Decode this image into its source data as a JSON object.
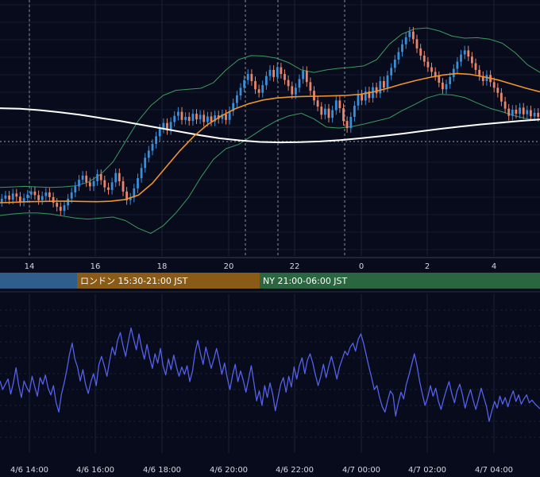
{
  "chart_data": [
    {
      "type": "candlestick",
      "panel": "price",
      "title": "",
      "x_ticks": [
        "14",
        "16",
        "18",
        "20",
        "22",
        "0",
        "2",
        "4"
      ],
      "grid": true,
      "colors": {
        "up": "#3a8fd8",
        "down": "#e8856a",
        "ma_long": "#ffffff",
        "ma_mid": "#f0942a",
        "band": "#3d9a5e"
      },
      "candles": [
        {
          "o": 1.1,
          "c": 1.8
        },
        {
          "o": 1.8,
          "c": 2.4
        },
        {
          "o": 2.4,
          "c": 1.6
        },
        {
          "o": 1.6,
          "c": 2.8
        },
        {
          "o": 2.8,
          "c": 2.2
        },
        {
          "o": 2.2,
          "c": 1.2
        },
        {
          "o": 1.2,
          "c": 1.9
        },
        {
          "o": 1.9,
          "c": 2.6
        },
        {
          "o": 2.6,
          "c": 3.2
        },
        {
          "o": 3.2,
          "c": 2.5
        },
        {
          "o": 2.5,
          "c": 1.5
        },
        {
          "o": 1.5,
          "c": 2.3
        },
        {
          "o": 2.3,
          "c": 3.0
        },
        {
          "o": 3.0,
          "c": 2.1
        },
        {
          "o": 2.1,
          "c": 1.0
        },
        {
          "o": 1.0,
          "c": 0.2
        },
        {
          "o": 0.2,
          "c": -0.6
        },
        {
          "o": -0.6,
          "c": 0.5
        },
        {
          "o": 0.5,
          "c": 1.8
        },
        {
          "o": 1.8,
          "c": 3.0
        },
        {
          "o": 3.0,
          "c": 4.2
        },
        {
          "o": 4.2,
          "c": 5.5
        },
        {
          "o": 5.5,
          "c": 6.3
        },
        {
          "o": 6.3,
          "c": 5.0
        },
        {
          "o": 5.0,
          "c": 4.2
        },
        {
          "o": 4.2,
          "c": 5.2
        },
        {
          "o": 5.2,
          "c": 6.6
        },
        {
          "o": 6.6,
          "c": 5.4
        },
        {
          "o": 5.4,
          "c": 4.0
        },
        {
          "o": 4.0,
          "c": 3.5
        },
        {
          "o": 3.5,
          "c": 5.0
        },
        {
          "o": 5.0,
          "c": 6.8
        },
        {
          "o": 6.8,
          "c": 5.2
        },
        {
          "o": 5.2,
          "c": 3.2
        },
        {
          "o": 3.2,
          "c": 1.5
        },
        {
          "o": 1.5,
          "c": 2.0
        },
        {
          "o": 2.0,
          "c": 3.8
        },
        {
          "o": 3.8,
          "c": 5.8
        },
        {
          "o": 5.8,
          "c": 7.8
        },
        {
          "o": 7.8,
          "c": 9.8
        },
        {
          "o": 9.8,
          "c": 11.2
        },
        {
          "o": 11.2,
          "c": 12.5
        },
        {
          "o": 12.5,
          "c": 14.0
        },
        {
          "o": 14.0,
          "c": 15.5
        },
        {
          "o": 15.5,
          "c": 16.6
        },
        {
          "o": 16.6,
          "c": 15.2
        },
        {
          "o": 15.2,
          "c": 16.8
        },
        {
          "o": 16.8,
          "c": 18.0
        },
        {
          "o": 18.0,
          "c": 18.8
        },
        {
          "o": 18.8,
          "c": 17.2
        },
        {
          "o": 17.2,
          "c": 17.8
        },
        {
          "o": 17.8,
          "c": 17.0
        },
        {
          "o": 17.0,
          "c": 18.4
        },
        {
          "o": 18.4,
          "c": 17.3
        },
        {
          "o": 17.3,
          "c": 18.2
        },
        {
          "o": 18.2,
          "c": 16.8
        },
        {
          "o": 16.8,
          "c": 17.9
        },
        {
          "o": 17.9,
          "c": 16.9
        },
        {
          "o": 16.9,
          "c": 18.1
        },
        {
          "o": 18.1,
          "c": 17.4
        },
        {
          "o": 17.4,
          "c": 18.3
        },
        {
          "o": 18.3,
          "c": 17.2
        },
        {
          "o": 17.2,
          "c": 18.9
        },
        {
          "o": 18.9,
          "c": 20.5
        },
        {
          "o": 20.5,
          "c": 22.0
        },
        {
          "o": 22.0,
          "c": 23.5
        },
        {
          "o": 23.5,
          "c": 25.0
        },
        {
          "o": 25.0,
          "c": 26.2
        },
        {
          "o": 26.2,
          "c": 24.8
        },
        {
          "o": 24.8,
          "c": 23.2
        },
        {
          "o": 23.2,
          "c": 22.5
        },
        {
          "o": 22.5,
          "c": 24.0
        },
        {
          "o": 24.0,
          "c": 25.8
        },
        {
          "o": 25.8,
          "c": 27.0
        },
        {
          "o": 27.0,
          "c": 25.6
        },
        {
          "o": 25.6,
          "c": 27.5
        },
        {
          "o": 27.5,
          "c": 26.2
        },
        {
          "o": 26.2,
          "c": 25.0
        },
        {
          "o": 25.0,
          "c": 23.8
        },
        {
          "o": 23.8,
          "c": 22.2
        },
        {
          "o": 22.2,
          "c": 23.5
        },
        {
          "o": 23.5,
          "c": 25.2
        },
        {
          "o": 25.2,
          "c": 26.8
        },
        {
          "o": 26.8,
          "c": 24.6
        },
        {
          "o": 24.6,
          "c": 22.9
        },
        {
          "o": 22.9,
          "c": 21.0
        },
        {
          "o": 21.0,
          "c": 19.8
        },
        {
          "o": 19.8,
          "c": 18.2
        },
        {
          "o": 18.2,
          "c": 19.4
        },
        {
          "o": 19.4,
          "c": 17.6
        },
        {
          "o": 17.6,
          "c": 19.1
        },
        {
          "o": 19.1,
          "c": 21.0
        },
        {
          "o": 21.0,
          "c": 19.5
        },
        {
          "o": 19.5,
          "c": 17.0
        },
        {
          "o": 17.0,
          "c": 15.6
        },
        {
          "o": 15.6,
          "c": 17.8
        },
        {
          "o": 17.8,
          "c": 20.0
        },
        {
          "o": 20.0,
          "c": 22.2
        },
        {
          "o": 22.2,
          "c": 21.0
        },
        {
          "o": 21.0,
          "c": 22.8
        },
        {
          "o": 22.8,
          "c": 21.5
        },
        {
          "o": 21.5,
          "c": 23.6
        },
        {
          "o": 23.6,
          "c": 22.4
        },
        {
          "o": 22.4,
          "c": 24.8
        },
        {
          "o": 24.8,
          "c": 23.5
        },
        {
          "o": 23.5,
          "c": 25.9
        },
        {
          "o": 25.9,
          "c": 27.4
        },
        {
          "o": 27.4,
          "c": 29.0
        },
        {
          "o": 29.0,
          "c": 30.5
        },
        {
          "o": 30.5,
          "c": 32.0
        },
        {
          "o": 32.0,
          "c": 33.4
        },
        {
          "o": 33.4,
          "c": 34.5
        },
        {
          "o": 34.5,
          "c": 33.0
        },
        {
          "o": 33.0,
          "c": 31.2
        },
        {
          "o": 31.2,
          "c": 29.8
        },
        {
          "o": 29.8,
          "c": 28.6
        },
        {
          "o": 28.6,
          "c": 27.5
        },
        {
          "o": 27.5,
          "c": 26.6
        },
        {
          "o": 26.6,
          "c": 25.8
        },
        {
          "o": 25.8,
          "c": 24.5
        },
        {
          "o": 24.5,
          "c": 23.2
        },
        {
          "o": 23.2,
          "c": 24.2
        },
        {
          "o": 24.2,
          "c": 25.6
        },
        {
          "o": 25.6,
          "c": 27.2
        },
        {
          "o": 27.2,
          "c": 28.6
        },
        {
          "o": 28.6,
          "c": 30.0
        },
        {
          "o": 30.0,
          "c": 30.8
        },
        {
          "o": 30.8,
          "c": 29.6
        },
        {
          "o": 29.6,
          "c": 28.3
        },
        {
          "o": 28.3,
          "c": 27.0
        },
        {
          "o": 27.0,
          "c": 25.8
        },
        {
          "o": 25.8,
          "c": 24.8
        },
        {
          "o": 24.8,
          "c": 26.0
        },
        {
          "o": 26.0,
          "c": 24.6
        },
        {
          "o": 24.6,
          "c": 23.5
        },
        {
          "o": 23.5,
          "c": 22.5
        },
        {
          "o": 22.5,
          "c": 20.8
        },
        {
          "o": 20.8,
          "c": 19.4
        },
        {
          "o": 19.4,
          "c": 18.0
        },
        {
          "o": 18.0,
          "c": 19.2
        },
        {
          "o": 19.2,
          "c": 18.4
        },
        {
          "o": 18.4,
          "c": 19.6
        },
        {
          "o": 19.6,
          "c": 18.3
        },
        {
          "o": 18.3,
          "c": 19.1
        },
        {
          "o": 19.1,
          "c": 17.9
        },
        {
          "o": 17.9,
          "c": 18.6
        },
        {
          "o": 18.6,
          "c": 17.8
        }
      ],
      "ma_long": [
        19.5,
        19.4,
        19.1,
        18.7,
        18.2,
        17.6,
        17.0,
        16.3,
        15.6,
        14.9,
        14.2,
        13.6,
        13.2,
        12.9,
        12.8,
        12.85,
        13.0,
        13.25,
        13.6,
        14.0,
        14.45,
        14.95,
        15.45,
        15.9,
        16.3,
        16.65,
        17.0,
        17.3
      ],
      "ma_mid": [
        1.0,
        1.1,
        1.2,
        1.25,
        1.3,
        1.3,
        1.25,
        1.2,
        1.3,
        1.6,
        2.5,
        4.8,
        8.0,
        11.2,
        14.0,
        16.3,
        18.0,
        19.4,
        20.4,
        21.1,
        21.5,
        21.7,
        21.8,
        21.85,
        21.9,
        22.0,
        22.2,
        22.7,
        23.4,
        24.2,
        24.9,
        25.5,
        26.0,
        26.3,
        26.1,
        25.6,
        25.0,
        24.2,
        23.4,
        22.7
      ],
      "band_upper": [
        4.0,
        4.1,
        4.2,
        4.1,
        4.0,
        4.1,
        4.3,
        5.0,
        6.5,
        9.0,
        13.0,
        17.0,
        20.0,
        22.0,
        23.0,
        23.2,
        23.4,
        24.5,
        27.0,
        29.0,
        29.8,
        29.7,
        29.3,
        28.4,
        27.0,
        26.5,
        27.0,
        27.3,
        27.5,
        27.8,
        29.0,
        32.0,
        34.0,
        35.0,
        35.2,
        34.6,
        33.6,
        33.2,
        33.3,
        33.0,
        32.2,
        30.4,
        28.0,
        26.5
      ],
      "band_lower": [
        -1.5,
        -1.2,
        -1.0,
        -1.0,
        -1.2,
        -1.6,
        -2.0,
        -2.2,
        -2.0,
        -1.8,
        -2.5,
        -4.0,
        -5.0,
        -3.5,
        -1.0,
        2.0,
        6.0,
        9.5,
        11.6,
        12.4,
        14.0,
        15.6,
        17.0,
        18.0,
        18.5,
        17.4,
        15.8,
        15.6,
        15.9,
        16.4,
        17.0,
        17.6,
        19.0,
        20.2,
        21.5,
        22.2,
        22.1,
        21.6,
        20.5,
        19.5,
        18.8,
        18.0,
        17.4,
        17.3
      ]
    },
    {
      "type": "bar",
      "panel": "sessions",
      "categories": [
        "",
        "ロンドン 15:30-21:00 JST",
        "NY 21:00-06:00 JST"
      ],
      "colors": [
        "#2f5e8c",
        "#8a5a17",
        "#2a6640"
      ]
    },
    {
      "type": "line",
      "panel": "oscillator",
      "x_ticks": [
        "4/6 14:00",
        "4/6 16:00",
        "4/6 18:00",
        "4/6 20:00",
        "4/6 22:00",
        "4/7 00:00",
        "4/7 02:00",
        "4/7 04:00"
      ],
      "color": "#5561e8",
      "series": [
        {
          "values": [
            -1.5,
            -2.8,
            -2.0,
            -1.2,
            -3.5,
            -1.8,
            0.5,
            -2.2,
            -4.0,
            -1.5,
            -2.5,
            -3.2,
            -0.8,
            -2.4,
            -3.8,
            -1.0,
            -2.0,
            -0.6,
            -2.6,
            -3.6,
            -2.2,
            -4.8,
            -6.2,
            -3.5,
            -1.8,
            0.2,
            2.5,
            4.2,
            1.8,
            0.6,
            -1.5,
            0.2,
            -2.0,
            -3.4,
            -1.6,
            -0.4,
            -2.2,
            1.0,
            2.2,
            0.8,
            -0.8,
            1.5,
            3.6,
            2.4,
            4.6,
            5.8,
            3.8,
            2.2,
            4.5,
            6.5,
            4.8,
            3.2,
            5.6,
            3.4,
            1.8,
            4.0,
            2.0,
            0.4,
            2.6,
            1.2,
            3.4,
            0.8,
            -0.6,
            1.8,
            0.2,
            2.4,
            0.6,
            -0.8,
            0.6,
            -0.5,
            0.8,
            -1.6,
            0.0,
            2.8,
            4.6,
            2.6,
            1.0,
            3.6,
            2.0,
            0.4,
            1.8,
            3.4,
            1.6,
            -0.5,
            1.2,
            -1.0,
            -2.8,
            -0.6,
            1.0,
            -1.6,
            0.0,
            -1.4,
            -3.2,
            -1.2,
            0.8,
            -1.8,
            -4.5,
            -3.0,
            -5.2,
            -2.2,
            -4.0,
            -1.8,
            -3.5,
            -6.0,
            -4.0,
            -2.0,
            -1.0,
            -3.2,
            -0.8,
            -2.4,
            0.6,
            -1.2,
            0.8,
            2.0,
            -0.4,
            1.6,
            2.6,
            1.2,
            -0.6,
            -2.2,
            -0.8,
            1.0,
            -1.0,
            0.8,
            2.2,
            0.6,
            -1.2,
            0.6,
            1.8,
            3.0,
            2.4,
            3.6,
            4.2,
            3.0,
            4.8,
            5.6,
            4.2,
            2.4,
            0.6,
            -1.0,
            -2.8,
            -2.2,
            -4.0,
            -5.4,
            -6.2,
            -4.5,
            -3.0,
            -3.6,
            -6.8,
            -4.8,
            -3.2,
            -4.2,
            -2.0,
            -0.6,
            1.0,
            2.6,
            0.8,
            -1.6,
            -3.5,
            -5.2,
            -4.0,
            -2.2,
            -3.8,
            -2.6,
            -4.6,
            -5.8,
            -4.2,
            -2.8,
            -1.6,
            -3.4,
            -4.8,
            -3.0,
            -2.0,
            -3.6,
            -5.6,
            -4.0,
            -2.8,
            -4.4,
            -5.8,
            -4.2,
            -2.6,
            -4.0,
            -5.4,
            -7.6,
            -6.0,
            -4.6,
            -5.6,
            -3.8,
            -5.0,
            -4.0,
            -5.4,
            -4.0,
            -3.0,
            -4.6,
            -3.6,
            -5.0,
            -4.2,
            -3.6,
            -4.8,
            -4.4,
            -4.9,
            -5.3,
            -5.7
          ]
        }
      ]
    }
  ]
}
